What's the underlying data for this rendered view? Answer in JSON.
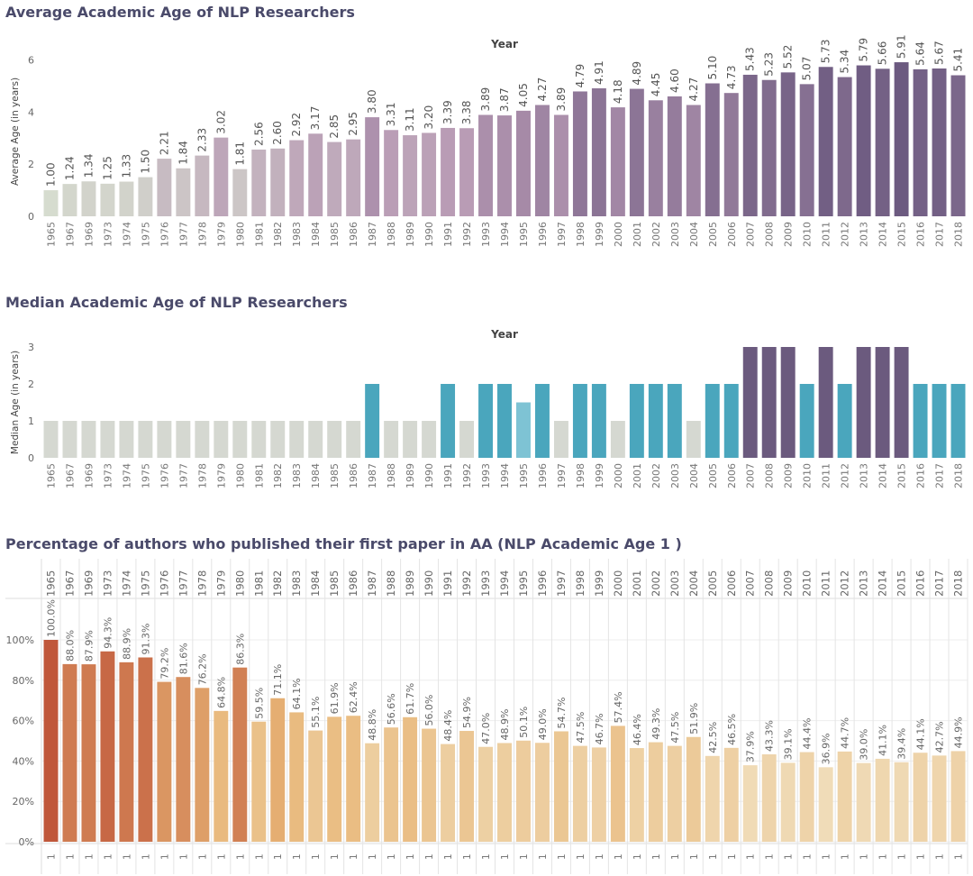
{
  "chart_data": [
    {
      "type": "bar",
      "title": "Average Academic Age of NLP Researchers",
      "xlabel": "Year",
      "ylabel": "Average Age (in years)",
      "ylim": [
        0,
        6.5
      ],
      "yticks": [
        "0",
        "2",
        "4",
        "6"
      ],
      "categories": [
        "1965",
        "1967",
        "1969",
        "1973",
        "1974",
        "1975",
        "1976",
        "1977",
        "1978",
        "1979",
        "1980",
        "1981",
        "1982",
        "1983",
        "1984",
        "1985",
        "1986",
        "1987",
        "1988",
        "1989",
        "1990",
        "1991",
        "1992",
        "1993",
        "1994",
        "1995",
        "1996",
        "1997",
        "1998",
        "1999",
        "2000",
        "2001",
        "2002",
        "2003",
        "2004",
        "2005",
        "2006",
        "2007",
        "2008",
        "2009",
        "2010",
        "2011",
        "2012",
        "2013",
        "2014",
        "2015",
        "2016",
        "2017",
        "2018"
      ],
      "values": [
        1.0,
        1.24,
        1.34,
        1.25,
        1.33,
        1.5,
        2.21,
        1.84,
        2.33,
        3.02,
        1.81,
        2.56,
        2.6,
        2.92,
        3.17,
        2.85,
        2.95,
        3.8,
        3.31,
        3.11,
        3.2,
        3.39,
        3.38,
        3.89,
        3.87,
        4.05,
        4.27,
        3.89,
        4.79,
        4.91,
        4.18,
        4.89,
        4.45,
        4.6,
        4.27,
        5.1,
        4.73,
        5.43,
        5.23,
        5.52,
        5.07,
        5.73,
        5.34,
        5.79,
        5.66,
        5.91,
        5.64,
        5.67,
        5.41
      ],
      "labels": [
        "1.00",
        "1.24",
        "1.34",
        "1.25",
        "1.33",
        "1.50",
        "2.21",
        "1.84",
        "2.33",
        "3.02",
        "1.81",
        "2.56",
        "2.60",
        "2.92",
        "3.17",
        "2.85",
        "2.95",
        "3.80",
        "3.31",
        "3.11",
        "3.20",
        "3.39",
        "3.38",
        "3.89",
        "3.87",
        "4.05",
        "4.27",
        "3.89",
        "4.79",
        "4.91",
        "4.18",
        "4.89",
        "4.45",
        "4.60",
        "4.27",
        "5.10",
        "4.73",
        "5.43",
        "5.23",
        "5.52",
        "5.07",
        "5.73",
        "5.34",
        "5.79",
        "5.66",
        "5.91",
        "5.64",
        "5.67",
        "5.41"
      ],
      "color_scale": [
        "#d6dccf",
        "#b89ab4",
        "#6c5a80"
      ],
      "legend": "none",
      "grid": false
    },
    {
      "type": "bar",
      "title": "Median Academic Age of NLP Researchers",
      "xlabel": "Year",
      "ylabel": "Median Age (in years)",
      "ylim": [
        0,
        3
      ],
      "yticks": [
        "0",
        "1",
        "2",
        "3"
      ],
      "categories": [
        "1965",
        "1967",
        "1969",
        "1973",
        "1974",
        "1975",
        "1976",
        "1977",
        "1978",
        "1979",
        "1980",
        "1981",
        "1982",
        "1983",
        "1984",
        "1985",
        "1986",
        "1987",
        "1988",
        "1989",
        "1990",
        "1991",
        "1992",
        "1993",
        "1994",
        "1995",
        "1996",
        "1997",
        "1998",
        "1999",
        "2000",
        "2001",
        "2002",
        "2003",
        "2004",
        "2005",
        "2006",
        "2007",
        "2008",
        "2009",
        "2010",
        "2011",
        "2012",
        "2013",
        "2014",
        "2015",
        "2016",
        "2017",
        "2018"
      ],
      "values": [
        1,
        1,
        1,
        1,
        1,
        1,
        1,
        1,
        1,
        1,
        1,
        1,
        1,
        1,
        1,
        1,
        1,
        2,
        1,
        1,
        1,
        2,
        1,
        2,
        2,
        1.5,
        2,
        1,
        2,
        2,
        1,
        2,
        2,
        2,
        1,
        2,
        2,
        3,
        3,
        3,
        2,
        3,
        2,
        3,
        3,
        3,
        2,
        2,
        2
      ],
      "colors": {
        "1": "#d5d8d1",
        "1.5": "#7ec3d4",
        "2": "#4aa6bd",
        "3": "#6b5a7e"
      },
      "legend": "none",
      "grid": false
    },
    {
      "type": "bar",
      "title": "Percentage of authors who published their first paper in AA (NLP Academic Age 1 )",
      "xlabel": "",
      "ylabel": "",
      "ylim": [
        0,
        100
      ],
      "yticks": [
        "0%",
        "20%",
        "40%",
        "60%",
        "80%",
        "100%"
      ],
      "column_footer": "1",
      "categories": [
        "1965",
        "1967",
        "1969",
        "1973",
        "1974",
        "1975",
        "1976",
        "1977",
        "1978",
        "1979",
        "1980",
        "1981",
        "1982",
        "1983",
        "1984",
        "1985",
        "1986",
        "1987",
        "1988",
        "1989",
        "1990",
        "1991",
        "1992",
        "1993",
        "1994",
        "1995",
        "1996",
        "1997",
        "1998",
        "1999",
        "2000",
        "2001",
        "2002",
        "2003",
        "2004",
        "2005",
        "2006",
        "2007",
        "2008",
        "2009",
        "2010",
        "2011",
        "2012",
        "2013",
        "2014",
        "2015",
        "2016",
        "2017",
        "2018"
      ],
      "values": [
        100.0,
        88.0,
        87.9,
        94.3,
        88.9,
        91.3,
        79.2,
        81.6,
        76.2,
        64.8,
        86.3,
        59.5,
        71.1,
        64.1,
        55.1,
        61.9,
        62.4,
        48.8,
        56.6,
        61.7,
        56.0,
        48.4,
        54.9,
        47.0,
        48.9,
        50.1,
        49.0,
        54.7,
        47.5,
        46.7,
        57.4,
        46.4,
        49.3,
        47.5,
        51.9,
        42.5,
        46.5,
        37.9,
        43.3,
        39.1,
        44.4,
        36.9,
        44.7,
        39.0,
        41.1,
        39.4,
        44.1,
        42.7,
        44.9
      ],
      "labels": [
        "100.0%",
        "88.0%",
        "87.9%",
        "94.3%",
        "88.9%",
        "91.3%",
        "79.2%",
        "81.6%",
        "76.2%",
        "64.8%",
        "86.3%",
        "59.5%",
        "71.1%",
        "64.1%",
        "55.1%",
        "61.9%",
        "62.4%",
        "48.8%",
        "56.6%",
        "61.7%",
        "56.0%",
        "48.4%",
        "54.9%",
        "47.0%",
        "48.9%",
        "50.1%",
        "49.0%",
        "54.7%",
        "47.5%",
        "46.7%",
        "57.4%",
        "46.4%",
        "49.3%",
        "47.5%",
        "51.9%",
        "42.5%",
        "46.5%",
        "37.9%",
        "43.3%",
        "39.1%",
        "44.4%",
        "36.9%",
        "44.7%",
        "39.0%",
        "41.1%",
        "39.4%",
        "44.1%",
        "42.7%",
        "44.9%"
      ],
      "color_scale": [
        "#f0dcb8",
        "#e8b677",
        "#c0573a"
      ],
      "legend": "none",
      "grid": true
    }
  ]
}
